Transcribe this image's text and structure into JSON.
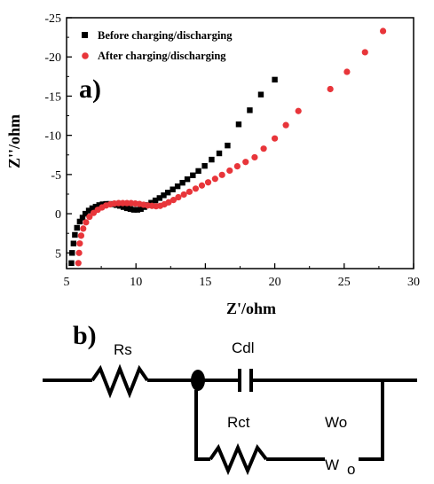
{
  "chart_data": {
    "type": "scatter",
    "panel_label": "a)",
    "xlabel": "Z'/ohm",
    "ylabel": "Z''/ohm",
    "xlim": [
      5,
      30
    ],
    "ylim": [
      7,
      -25
    ],
    "y_inverted": true,
    "xticks": [
      5,
      10,
      15,
      20,
      25,
      30
    ],
    "yticks": [
      -25,
      -20,
      -15,
      -10,
      -5,
      0,
      5
    ],
    "ytick_labels": [
      "-25",
      "-20",
      "-15",
      "-10",
      "-5",
      "0",
      "5"
    ],
    "grid": false,
    "legend_position": "top-left",
    "series": [
      {
        "name": "Before charging/discharging",
        "marker": "square",
        "color": "#000000",
        "points": [
          [
            5.35,
            6.3
          ],
          [
            5.4,
            5.0
          ],
          [
            5.5,
            3.8
          ],
          [
            5.6,
            2.7
          ],
          [
            5.75,
            1.8
          ],
          [
            5.95,
            1.0
          ],
          [
            6.15,
            0.5
          ],
          [
            6.35,
            0.0
          ],
          [
            6.6,
            -0.4
          ],
          [
            6.85,
            -0.7
          ],
          [
            7.1,
            -0.9
          ],
          [
            7.35,
            -1.1
          ],
          [
            7.6,
            -1.2
          ],
          [
            7.85,
            -1.25
          ],
          [
            8.1,
            -1.25
          ],
          [
            8.35,
            -1.2
          ],
          [
            8.6,
            -1.1
          ],
          [
            8.85,
            -1.0
          ],
          [
            9.1,
            -0.85
          ],
          [
            9.35,
            -0.7
          ],
          [
            9.6,
            -0.6
          ],
          [
            9.85,
            -0.5
          ],
          [
            10.1,
            -0.5
          ],
          [
            10.35,
            -0.6
          ],
          [
            10.6,
            -0.85
          ],
          [
            10.85,
            -1.1
          ],
          [
            11.1,
            -1.4
          ],
          [
            11.4,
            -1.7
          ],
          [
            11.7,
            -2.0
          ],
          [
            12.0,
            -2.35
          ],
          [
            12.3,
            -2.7
          ],
          [
            12.65,
            -3.1
          ],
          [
            13.0,
            -3.5
          ],
          [
            13.35,
            -3.95
          ],
          [
            13.7,
            -4.4
          ],
          [
            14.1,
            -4.9
          ],
          [
            14.5,
            -5.45
          ],
          [
            14.95,
            -6.1
          ],
          [
            15.45,
            -6.9
          ],
          [
            16.0,
            -7.7
          ],
          [
            16.6,
            -8.7
          ],
          [
            17.4,
            -11.4
          ],
          [
            18.2,
            -13.2
          ],
          [
            19.0,
            -15.2
          ],
          [
            20.0,
            -17.1
          ]
        ]
      },
      {
        "name": "After charging/discharging",
        "marker": "circle",
        "color": "#e8353a",
        "points": [
          [
            5.85,
            6.3
          ],
          [
            5.9,
            5.0
          ],
          [
            5.95,
            3.8
          ],
          [
            6.05,
            2.8
          ],
          [
            6.2,
            1.9
          ],
          [
            6.4,
            1.1
          ],
          [
            6.65,
            0.4
          ],
          [
            6.95,
            -0.1
          ],
          [
            7.25,
            -0.5
          ],
          [
            7.55,
            -0.8
          ],
          [
            7.85,
            -1.05
          ],
          [
            8.15,
            -1.2
          ],
          [
            8.45,
            -1.3
          ],
          [
            8.75,
            -1.35
          ],
          [
            9.05,
            -1.35
          ],
          [
            9.35,
            -1.35
          ],
          [
            9.65,
            -1.35
          ],
          [
            9.95,
            -1.3
          ],
          [
            10.25,
            -1.25
          ],
          [
            10.55,
            -1.15
          ],
          [
            10.85,
            -1.05
          ],
          [
            11.15,
            -1.0
          ],
          [
            11.45,
            -0.95
          ],
          [
            11.75,
            -1.0
          ],
          [
            12.05,
            -1.2
          ],
          [
            12.35,
            -1.45
          ],
          [
            12.7,
            -1.75
          ],
          [
            13.05,
            -2.1
          ],
          [
            13.45,
            -2.45
          ],
          [
            13.85,
            -2.8
          ],
          [
            14.3,
            -3.2
          ],
          [
            14.75,
            -3.6
          ],
          [
            15.2,
            -4.0
          ],
          [
            15.7,
            -4.45
          ],
          [
            16.2,
            -4.95
          ],
          [
            16.75,
            -5.5
          ],
          [
            17.3,
            -6.05
          ],
          [
            17.9,
            -6.6
          ],
          [
            18.55,
            -7.2
          ],
          [
            19.2,
            -8.3
          ],
          [
            20.0,
            -9.6
          ],
          [
            20.8,
            -11.3
          ],
          [
            21.7,
            -13.1
          ],
          [
            24.0,
            -15.9
          ],
          [
            25.2,
            -18.1
          ],
          [
            26.5,
            -20.6
          ],
          [
            27.8,
            -23.3
          ]
        ]
      }
    ]
  },
  "circuit": {
    "panel_label": "b)",
    "labels": {
      "rs": "Rs",
      "cdl": "Cdl",
      "rct": "Rct",
      "wo_top": "Wo",
      "wo_symbol": "W",
      "wo_subscript": "o"
    }
  }
}
